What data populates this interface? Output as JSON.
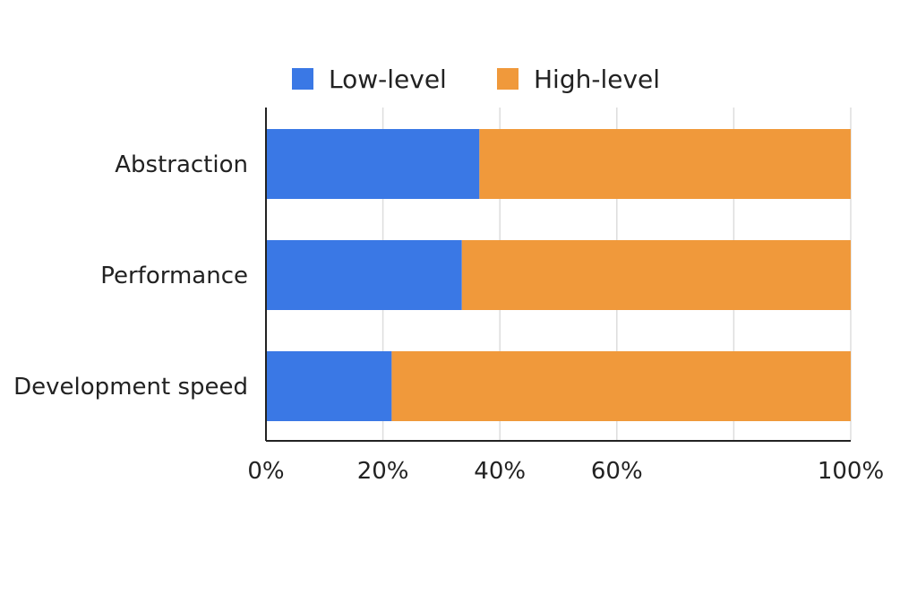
{
  "chart_data": {
    "type": "bar",
    "orientation": "horizontal",
    "stacked": true,
    "categories": [
      "Abstraction",
      "Performance",
      "Development speed"
    ],
    "series": [
      {
        "name": "Low-level",
        "values": [
          36.5,
          33.5,
          21.5
        ],
        "color": "#3a78e5"
      },
      {
        "name": "High-level",
        "values": [
          63.5,
          66.5,
          78.5
        ],
        "color": "#f0993b"
      }
    ],
    "xlim": [
      0,
      100
    ],
    "x_ticks": [
      "0%",
      "20%",
      "40%",
      "60%",
      "100%"
    ],
    "x_tick_values": [
      0,
      20,
      40,
      60,
      100
    ],
    "grid": true,
    "legend_position": "top",
    "title": "",
    "xlabel": "",
    "ylabel": ""
  }
}
